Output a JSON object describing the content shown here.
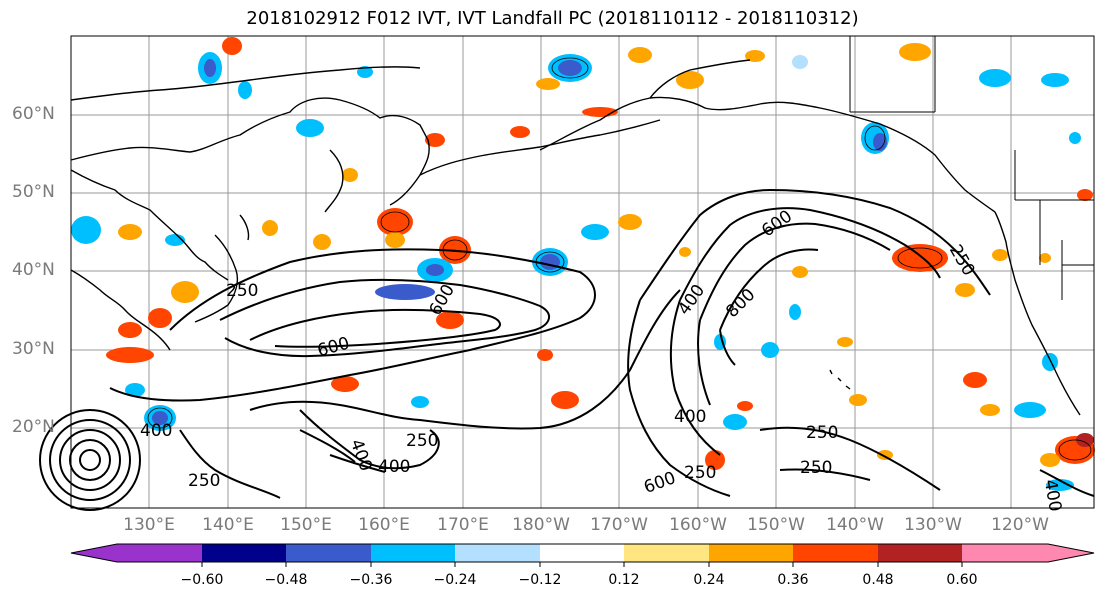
{
  "title": "2018102912 F012 IVT, IVT Landfall PC (2018110112 - 2018110312)",
  "map": {
    "lat_labels": [
      "60°N",
      "50°N",
      "40°N",
      "30°N",
      "20°N"
    ],
    "lon_labels": [
      "130°E",
      "140°E",
      "150°E",
      "160°E",
      "170°E",
      "180°W",
      "170°W",
      "160°W",
      "150°W",
      "140°W",
      "130°W",
      "120°W"
    ],
    "contour_labels": [
      "250",
      "250",
      "250",
      "250",
      "250",
      "250",
      "250",
      "400",
      "400",
      "400",
      "400",
      "400",
      "400",
      "600",
      "600",
      "600",
      "600",
      "800"
    ]
  },
  "colorbar": {
    "colors": [
      "#9933cc",
      "#00008b",
      "#3a5bcc",
      "#00bfff",
      "#b3e0ff",
      "#ffffff",
      "#ffe680",
      "#ffa500",
      "#ff4500",
      "#b22222",
      "#ff88b0"
    ],
    "ticks": [
      "−0.60",
      "−0.48",
      "−0.36",
      "−0.24",
      "−0.12",
      "0.12",
      "0.24",
      "0.36",
      "0.48",
      "0.60"
    ]
  }
}
